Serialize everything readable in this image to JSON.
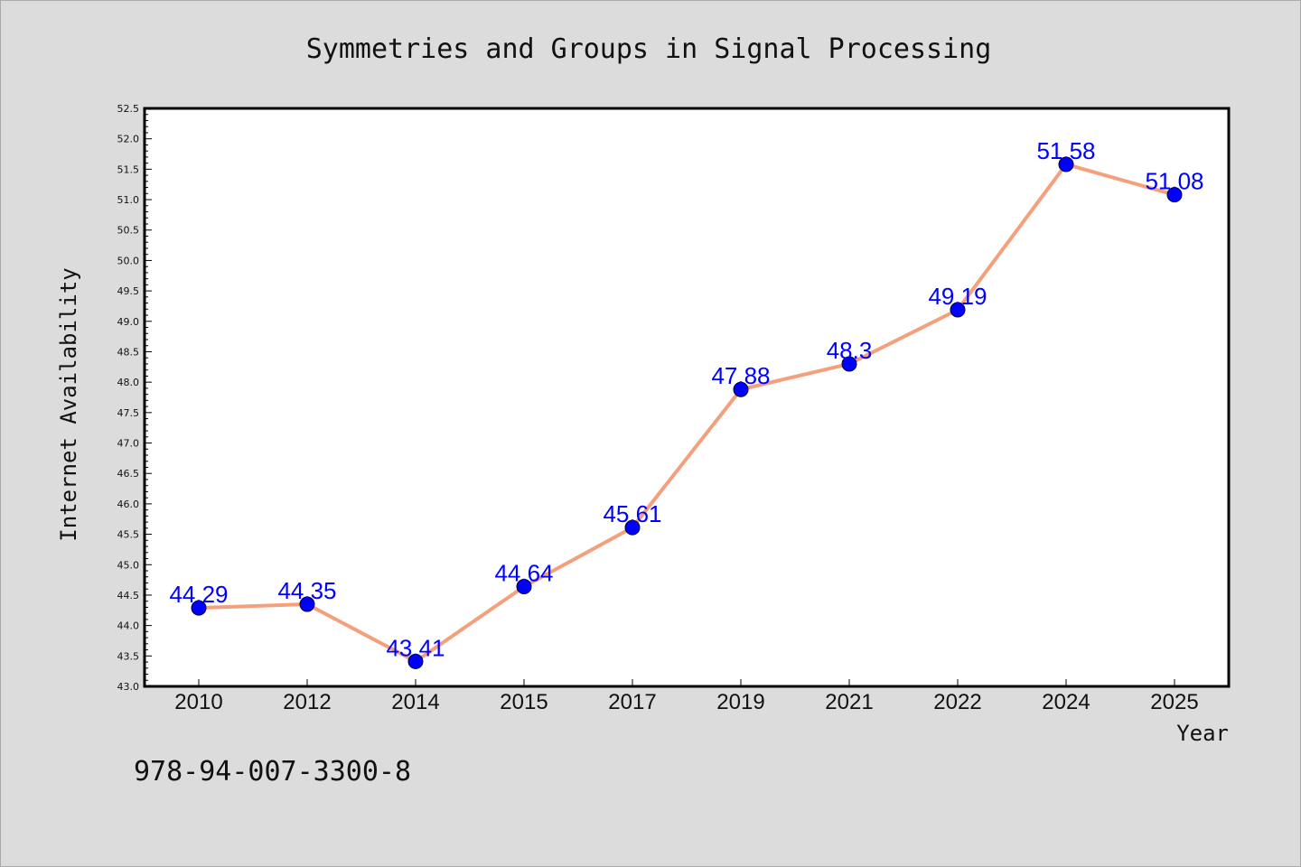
{
  "chart_data": {
    "type": "line",
    "title": "Symmetries and Groups in Signal Processing",
    "xlabel": "Year",
    "ylabel": "Internet Availability",
    "categories": [
      "2010",
      "2012",
      "2014",
      "2015",
      "2017",
      "2019",
      "2021",
      "2022",
      "2024",
      "2025"
    ],
    "values": [
      44.29,
      44.35,
      43.41,
      44.64,
      45.61,
      47.88,
      48.3,
      49.19,
      51.58,
      51.08
    ],
    "data_labels": [
      "44.29",
      "44.35",
      "43.41",
      "44.64",
      "45.61",
      "47.88",
      "48.3",
      "49.19",
      "51.58",
      "51.08"
    ],
    "ylim": [
      43.0,
      52.5
    ],
    "yticks": [
      "43.0",
      "43.5",
      "44.0",
      "44.5",
      "45.0",
      "45.5",
      "46.0",
      "46.5",
      "47.0",
      "47.5",
      "48.0",
      "48.5",
      "49.0",
      "49.5",
      "50.0",
      "50.5",
      "51.0",
      "51.5",
      "52.0",
      "52.5"
    ],
    "grid": false,
    "legend": "none",
    "line_color": "#f4a07c",
    "marker_color": "#0000ff",
    "label_color": "#0000ff"
  },
  "footer": {
    "text": "978-94-007-3300-8"
  }
}
